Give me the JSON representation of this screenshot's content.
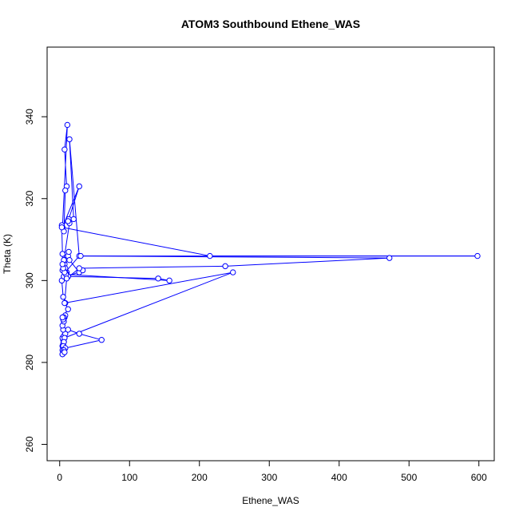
{
  "chart_data": {
    "type": "line",
    "title": "ATOM3 Southbound Ethene_WAS",
    "xlabel": "Ethene_WAS",
    "ylabel": "Theta (K)",
    "xlim": [
      -18,
      622
    ],
    "ylim": [
      256,
      357
    ],
    "x_ticks": [
      0,
      100,
      200,
      300,
      400,
      500,
      600
    ],
    "y_ticks": [
      260,
      280,
      300,
      320,
      340
    ],
    "grid": false,
    "legend": "none",
    "colors": {
      "series": "#0000ff",
      "frame": "#000000",
      "background": "#ffffff"
    },
    "series": [
      {
        "marker": "open-circle",
        "x": [
          4,
          6,
          5,
          6,
          4,
          5,
          6,
          7,
          5,
          4,
          6,
          8,
          5,
          4,
          6,
          7,
          8,
          6,
          5,
          4,
          12,
          8,
          5,
          3,
          6,
          10,
          4,
          7,
          8,
          12,
          13,
          14,
          28,
          33,
          12,
          10,
          8,
          6,
          14,
          13,
          28,
          4,
          11,
          7,
          10,
          8,
          6,
          3,
          12,
          20,
          14,
          28,
          8,
          10,
          6,
          12,
          141,
          157,
          9,
          7,
          5,
          4,
          4,
          3,
          215,
          598,
          30,
          472,
          237,
          28,
          10,
          7,
          248,
          7,
          6,
          5,
          4,
          12,
          28,
          60,
          8,
          6,
          5,
          4,
          7
        ],
        "y": [
          282,
          282.5,
          283,
          283.5,
          284,
          284.5,
          285,
          286,
          285.5,
          286,
          286.5,
          287,
          288,
          289,
          290,
          291,
          291.5,
          291,
          290.5,
          291,
          293,
          294.5,
          296,
          300,
          301,
          302,
          302.5,
          304,
          305,
          306,
          307,
          305,
          302,
          302.5,
          301,
          302,
          303,
          305,
          314,
          315,
          323,
          313,
          338,
          332,
          323,
          322,
          312,
          313.5,
          314.5,
          315,
          334.5,
          306,
          302,
          301.5,
          301,
          301,
          300.5,
          300,
          301.5,
          302,
          303,
          304,
          306.5,
          313,
          306,
          306,
          306,
          305.5,
          303.5,
          303,
          300.5,
          294.5,
          302,
          286,
          285,
          284,
          283,
          288,
          287,
          285.5,
          283.5,
          283,
          282.5,
          282,
          282.5
        ]
      }
    ]
  }
}
